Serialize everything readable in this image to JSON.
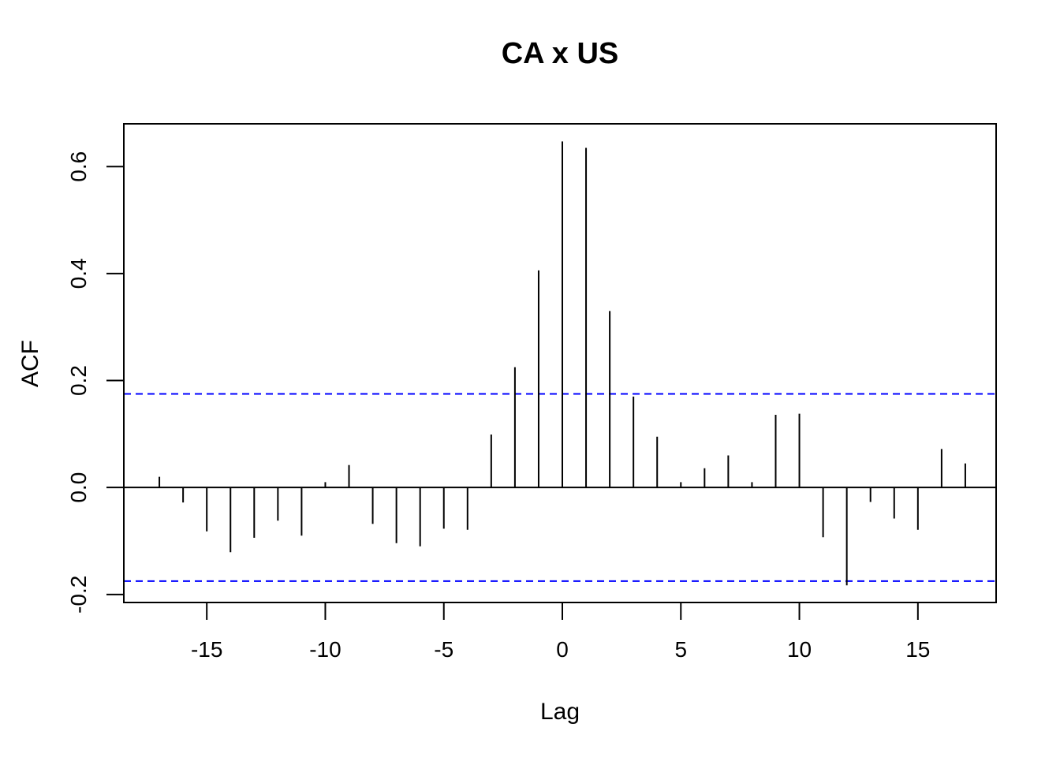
{
  "chart_data": {
    "type": "bar",
    "title": "CA x US",
    "xlabel": "Lag",
    "ylabel": "ACF",
    "x": [
      -17,
      -16,
      -15,
      -14,
      -13,
      -12,
      -11,
      -10,
      -9,
      -8,
      -7,
      -6,
      -5,
      -4,
      -3,
      -2,
      -1,
      0,
      1,
      2,
      3,
      4,
      5,
      6,
      7,
      8,
      9,
      10,
      11,
      12,
      13,
      14,
      15,
      16,
      17
    ],
    "values": [
      0.02,
      -0.028,
      -0.082,
      -0.121,
      -0.094,
      -0.062,
      -0.09,
      0.01,
      0.042,
      -0.068,
      -0.104,
      -0.11,
      -0.077,
      -0.079,
      0.099,
      0.225,
      0.406,
      0.647,
      0.635,
      0.33,
      0.17,
      0.095,
      0.01,
      0.036,
      0.06,
      0.01,
      0.136,
      0.138,
      -0.093,
      -0.183,
      -0.027,
      -0.058,
      -0.079,
      0.072,
      0.045
    ],
    "confidence_bounds": [
      0.175,
      -0.175
    ],
    "xlim": [
      -18.5,
      18.3
    ],
    "ylim": [
      -0.215,
      0.68
    ],
    "x_ticks": [
      -15,
      -10,
      -5,
      0,
      5,
      10,
      15
    ],
    "y_ticks": [
      -0.2,
      0.0,
      0.2,
      0.4,
      0.6
    ],
    "x_tick_labels": [
      "-15",
      "-10",
      "-5",
      "0",
      "5",
      "10",
      "15"
    ],
    "y_tick_labels": [
      "-0.2",
      "0.0",
      "0.2",
      "0.4",
      "0.6"
    ],
    "bound_color": "#0000ff",
    "stem_color": "#000000",
    "grid": false
  }
}
